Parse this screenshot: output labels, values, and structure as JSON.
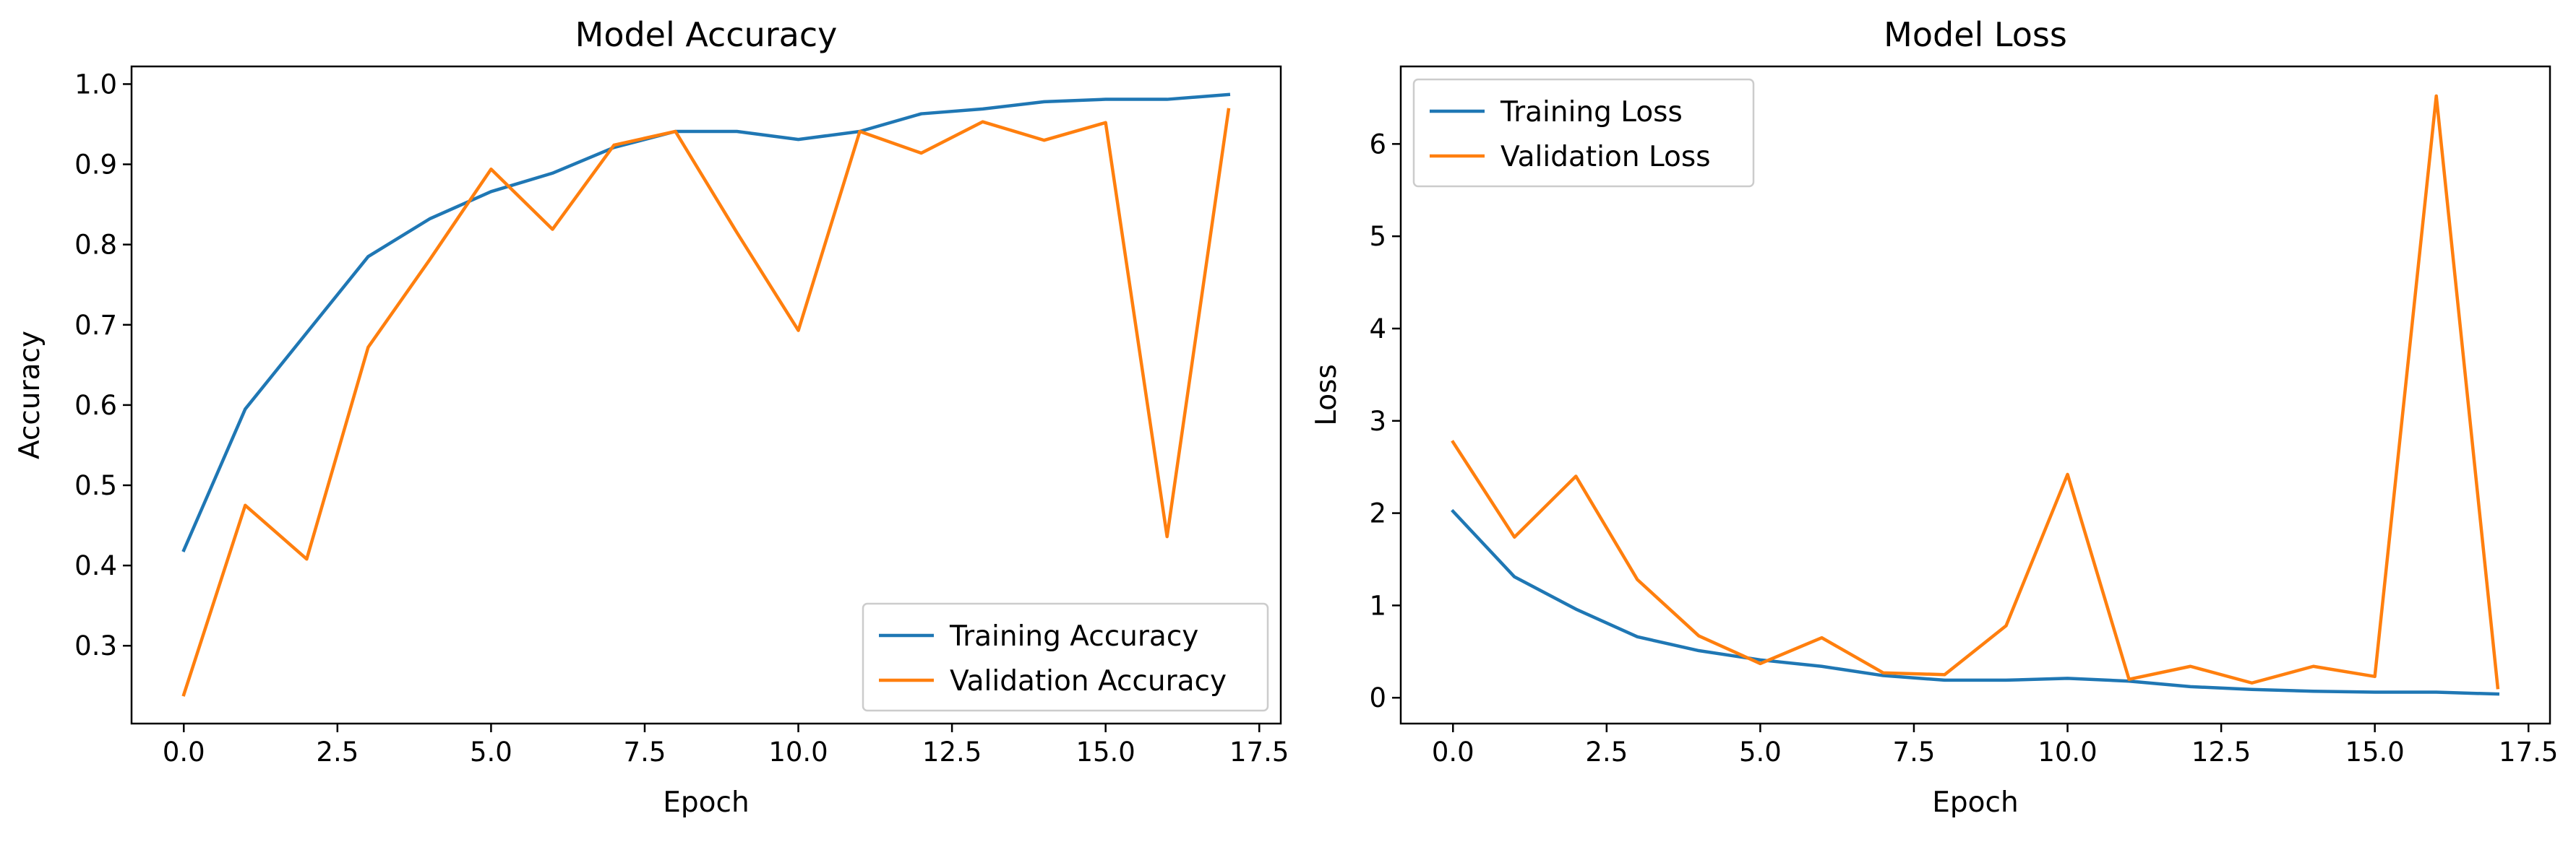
{
  "colors": {
    "training": "#1f77b4",
    "validation": "#ff7f0e"
  },
  "chart_data": [
    {
      "type": "line",
      "title": "Model Accuracy",
      "xlabel": "Epoch",
      "ylabel": "Accuracy",
      "xlim": [
        -0.85,
        17.85
      ],
      "ylim": [
        0.203,
        1.022
      ],
      "xticks": [
        0,
        2.5,
        5,
        7.5,
        10,
        12.5,
        15,
        17.5
      ],
      "xtick_labels": [
        "0.0",
        "2.5",
        "5.0",
        "7.5",
        "10.0",
        "12.5",
        "15.0",
        "17.5"
      ],
      "yticks": [
        0.3,
        0.4,
        0.5,
        0.6,
        0.7,
        0.8,
        0.9,
        1.0
      ],
      "ytick_labels": [
        "0.3",
        "0.4",
        "0.5",
        "0.6",
        "0.7",
        "0.8",
        "0.9",
        "1.0"
      ],
      "legend_position": "lower right",
      "x": [
        0,
        1,
        2,
        3,
        4,
        5,
        6,
        7,
        8,
        9,
        10,
        11,
        12,
        13,
        14,
        15,
        16,
        17
      ],
      "series": [
        {
          "name": "Training Accuracy",
          "color_key": "training",
          "values": [
            0.419,
            0.595,
            0.69,
            0.785,
            0.832,
            0.866,
            0.889,
            0.921,
            0.941,
            0.941,
            0.931,
            0.941,
            0.963,
            0.969,
            0.978,
            0.981,
            0.981,
            0.987
          ]
        },
        {
          "name": "Validation Accuracy",
          "color_key": "validation",
          "values": [
            0.239,
            0.475,
            0.408,
            0.672,
            0.781,
            0.894,
            0.819,
            0.924,
            0.941,
            0.815,
            0.693,
            0.941,
            0.914,
            0.953,
            0.93,
            0.952,
            0.436,
            0.968
          ]
        }
      ]
    },
    {
      "type": "line",
      "title": "Model Loss",
      "xlabel": "Epoch",
      "ylabel": "Loss",
      "xlim": [
        -0.85,
        17.85
      ],
      "ylim": [
        -0.28,
        6.84
      ],
      "xticks": [
        0,
        2.5,
        5,
        7.5,
        10,
        12.5,
        15,
        17.5
      ],
      "xtick_labels": [
        "0.0",
        "2.5",
        "5.0",
        "7.5",
        "10.0",
        "12.5",
        "15.0",
        "17.5"
      ],
      "yticks": [
        0,
        1,
        2,
        3,
        4,
        5,
        6
      ],
      "ytick_labels": [
        "0",
        "1",
        "2",
        "3",
        "4",
        "5",
        "6"
      ],
      "legend_position": "upper left",
      "x": [
        0,
        1,
        2,
        3,
        4,
        5,
        6,
        7,
        8,
        9,
        10,
        11,
        12,
        13,
        14,
        15,
        16,
        17
      ],
      "series": [
        {
          "name": "Training Loss",
          "color_key": "training",
          "values": [
            2.02,
            1.31,
            0.96,
            0.66,
            0.51,
            0.41,
            0.34,
            0.24,
            0.19,
            0.19,
            0.21,
            0.18,
            0.12,
            0.09,
            0.07,
            0.06,
            0.06,
            0.04
          ]
        },
        {
          "name": "Validation Loss",
          "color_key": "validation",
          "values": [
            2.77,
            1.74,
            2.4,
            1.28,
            0.67,
            0.37,
            0.65,
            0.27,
            0.25,
            0.78,
            2.42,
            0.2,
            0.34,
            0.16,
            0.34,
            0.23,
            6.52,
            0.11
          ]
        }
      ]
    }
  ]
}
